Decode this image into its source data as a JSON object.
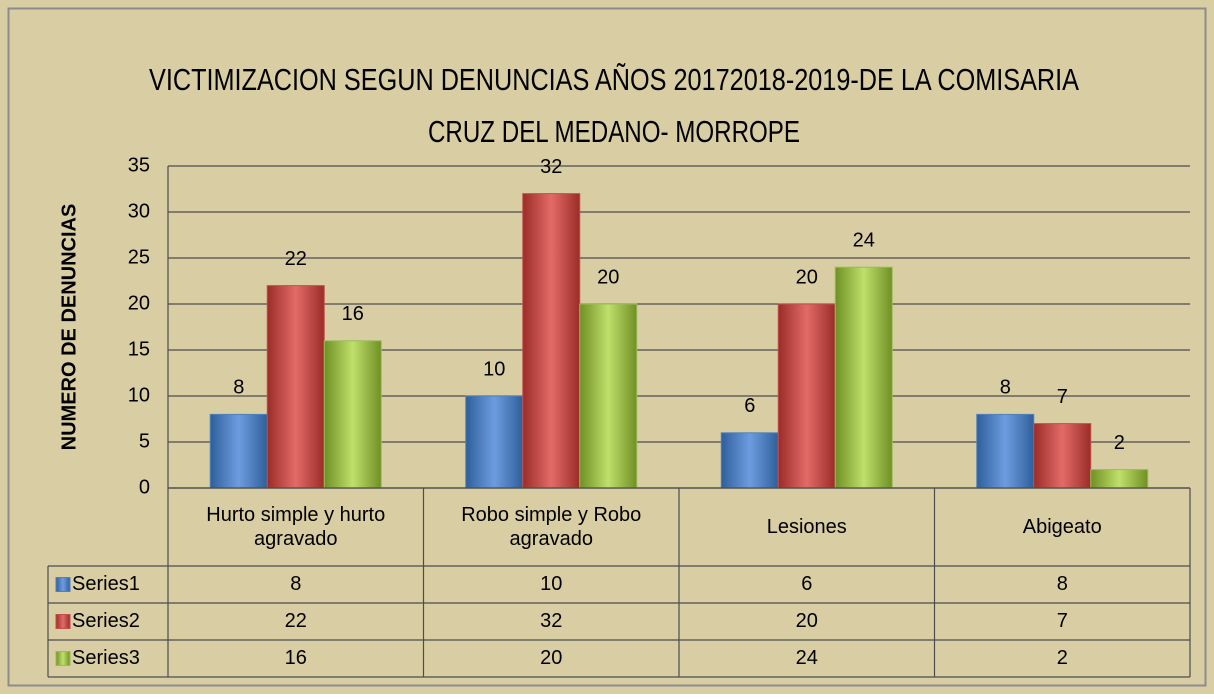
{
  "chart_data": {
    "type": "bar",
    "title": [
      "VICTIMIZACION SEGUN DENUNCIAS AÑOS 20172018-2019-DE LA COMISARIA",
      "CRUZ DEL MEDANO- MORROPE"
    ],
    "y_label": "NUMERO DE DENUNCIAS",
    "categories": [
      "Hurto simple y hurto agravado",
      "Robo simple y Robo agravado",
      "Lesiones",
      "Abigeato"
    ],
    "series": [
      {
        "name": "Series1",
        "color": "#4f81bd",
        "values": [
          8,
          10,
          6,
          8
        ]
      },
      {
        "name": "Series2",
        "color": "#c0504d",
        "values": [
          22,
          32,
          20,
          7
        ]
      },
      {
        "name": "Series3",
        "color": "#9bbb59",
        "values": [
          16,
          20,
          24,
          2
        ]
      }
    ],
    "ylim": [
      0,
      35
    ],
    "yticks": [
      0,
      5,
      10,
      15,
      20,
      25,
      30,
      35
    ],
    "grid": true,
    "data_table": true
  }
}
